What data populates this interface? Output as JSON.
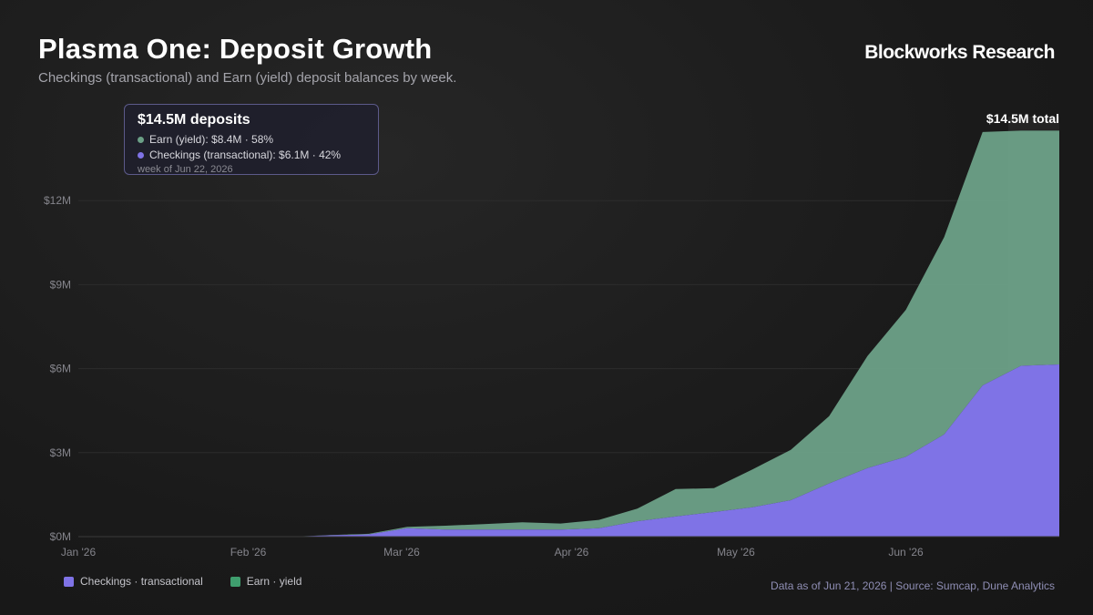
{
  "header": {
    "title": "Plasma One: Deposit Growth",
    "subtitle": "Checkings (transactional) and Earn (yield) deposit balances by week.",
    "brand": "Blockworks Research"
  },
  "tooltip": {
    "headline": "$14.5M deposits",
    "earn_line": "Earn (yield): $8.4M · 58%",
    "checkings_line": "Checkings (transactional): $6.1M · 42%",
    "week": "week of Jun 22, 2026"
  },
  "total_annotation": "$14.5M total",
  "legend": {
    "checkings": "Checkings · transactional",
    "earn": "Earn · yield"
  },
  "footer": "Data as of Jun 21, 2026 | Source: Sumcap, Dune Analytics",
  "colors": {
    "checkings": "#7f73e6",
    "earn": "#6b9f86",
    "legend_earn": "#3f9e6e",
    "background": "#1b1b1b"
  },
  "chart_data": {
    "type": "area",
    "stacked": true,
    "x_axis": {
      "type": "date",
      "range": [
        "2026-01-01",
        "2026-06-29"
      ],
      "ticks": [
        {
          "date": "2026-01-01",
          "label": "Jan '26"
        },
        {
          "date": "2026-02-01",
          "label": "Feb '26"
        },
        {
          "date": "2026-03-01",
          "label": "Mar '26"
        },
        {
          "date": "2026-04-01",
          "label": "Apr '26"
        },
        {
          "date": "2026-05-01",
          "label": "May '26"
        },
        {
          "date": "2026-06-01",
          "label": "Jun '26"
        }
      ]
    },
    "y_axis": {
      "range": [
        0,
        15
      ],
      "unit": "$M",
      "ticks": [
        {
          "value": 0,
          "label": "$0M"
        },
        {
          "value": 3,
          "label": "$3M"
        },
        {
          "value": 6,
          "label": "$6M"
        },
        {
          "value": 9,
          "label": "$9M"
        },
        {
          "value": 12,
          "label": "$12M"
        }
      ],
      "grid": true
    },
    "x": [
      "2026-02-09",
      "2026-02-16",
      "2026-02-23",
      "2026-03-02",
      "2026-03-09",
      "2026-03-16",
      "2026-03-23",
      "2026-03-30",
      "2026-04-06",
      "2026-04-13",
      "2026-04-20",
      "2026-04-27",
      "2026-05-04",
      "2026-05-11",
      "2026-05-18",
      "2026-05-25",
      "2026-06-01",
      "2026-06-08",
      "2026-06-15",
      "2026-06-22",
      "2026-06-29"
    ],
    "series": [
      {
        "name": "Checkings · transactional",
        "values": [
          0.0,
          0.05,
          0.08,
          0.3,
          0.25,
          0.25,
          0.25,
          0.25,
          0.3,
          0.55,
          0.72,
          0.88,
          1.05,
          1.3,
          1.9,
          2.45,
          2.85,
          3.65,
          5.4,
          6.1,
          6.15
        ]
      },
      {
        "name": "Earn · yield",
        "values": [
          0.0,
          0.01,
          0.02,
          0.05,
          0.14,
          0.2,
          0.26,
          0.22,
          0.3,
          0.45,
          0.98,
          0.85,
          1.35,
          1.8,
          2.4,
          4.0,
          5.25,
          7.05,
          9.05,
          8.4,
          8.35
        ]
      }
    ],
    "highlight": {
      "x": "2026-06-22",
      "total": 14.5,
      "label": "$14.5M total"
    }
  }
}
